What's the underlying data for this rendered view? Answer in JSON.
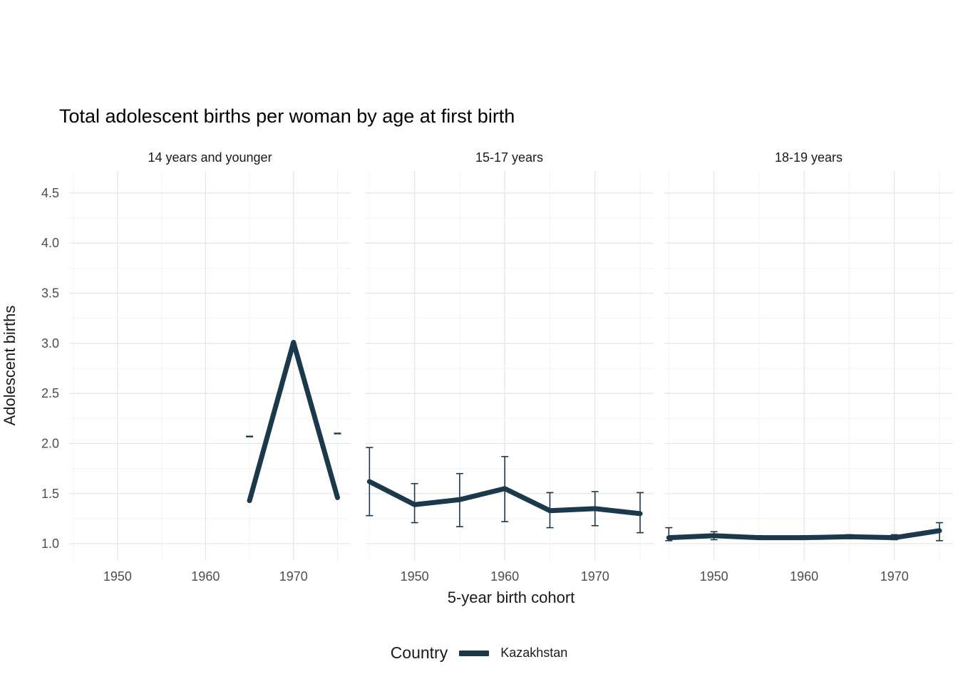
{
  "title": "Total adolescent births per woman by age at first birth",
  "axes": {
    "x_title": "5-year birth cohort",
    "y_title": "Adolescent births"
  },
  "legend": {
    "title": "Country",
    "series_label": "Kazakhstan"
  },
  "colors": {
    "series": "#1b394a",
    "grid_major": "#e6e6e6",
    "grid_minor": "#f2f2f2",
    "tick_text": "#4d4d4d",
    "title_text": "#000000"
  },
  "chart_data": {
    "type": "line",
    "title": "Total adolescent births per woman by age at first birth",
    "xlabel": "5-year birth cohort",
    "ylabel": "Adolescent births",
    "legend_title": "Country",
    "series_name": "Kazakhstan",
    "grid": true,
    "x_ticks": [
      1950,
      1960,
      1970
    ],
    "x_minor": [
      1945,
      1955,
      1965,
      1975
    ],
    "y_ticks": [
      1.0,
      1.5,
      2.0,
      2.5,
      3.0,
      3.5,
      4.0,
      4.5
    ],
    "y_minor": [
      1.25,
      1.75,
      2.25,
      2.75,
      3.25,
      3.75,
      4.25
    ],
    "xlim": [
      1944.5,
      1976.5
    ],
    "ylim": [
      0.83,
      4.72
    ],
    "facets": [
      {
        "label": "14 years and younger",
        "points": [
          {
            "x": 1965,
            "y": 1.43
          },
          {
            "x": 1970,
            "y": 3.01
          },
          {
            "x": 1975,
            "y": 1.46
          }
        ],
        "dashes": [
          {
            "x": 1965,
            "y": 2.07
          },
          {
            "x": 1975,
            "y": 2.1
          }
        ]
      },
      {
        "label": "15-17 years",
        "points": [
          {
            "x": 1945,
            "y": 1.62,
            "lo": 1.28,
            "hi": 1.96
          },
          {
            "x": 1950,
            "y": 1.39,
            "lo": 1.21,
            "hi": 1.6
          },
          {
            "x": 1955,
            "y": 1.44,
            "lo": 1.17,
            "hi": 1.7
          },
          {
            "x": 1960,
            "y": 1.55,
            "lo": 1.22,
            "hi": 1.87
          },
          {
            "x": 1965,
            "y": 1.33,
            "lo": 1.16,
            "hi": 1.51
          },
          {
            "x": 1970,
            "y": 1.35,
            "lo": 1.18,
            "hi": 1.52
          },
          {
            "x": 1975,
            "y": 1.3,
            "lo": 1.11,
            "hi": 1.51
          }
        ],
        "dashes": []
      },
      {
        "label": "18-19 years",
        "points": [
          {
            "x": 1945,
            "y": 1.06,
            "lo": 1.03,
            "hi": 1.16
          },
          {
            "x": 1950,
            "y": 1.08,
            "lo": 1.04,
            "hi": 1.12
          },
          {
            "x": 1955,
            "y": 1.06,
            "lo": 1.05,
            "hi": 1.08
          },
          {
            "x": 1960,
            "y": 1.06,
            "lo": 1.05,
            "hi": 1.08
          },
          {
            "x": 1965,
            "y": 1.07,
            "lo": 1.05,
            "hi": 1.09
          },
          {
            "x": 1970,
            "y": 1.06,
            "lo": 1.04,
            "hi": 1.09
          },
          {
            "x": 1975,
            "y": 1.13,
            "lo": 1.03,
            "hi": 1.21
          }
        ],
        "dashes": []
      }
    ]
  }
}
